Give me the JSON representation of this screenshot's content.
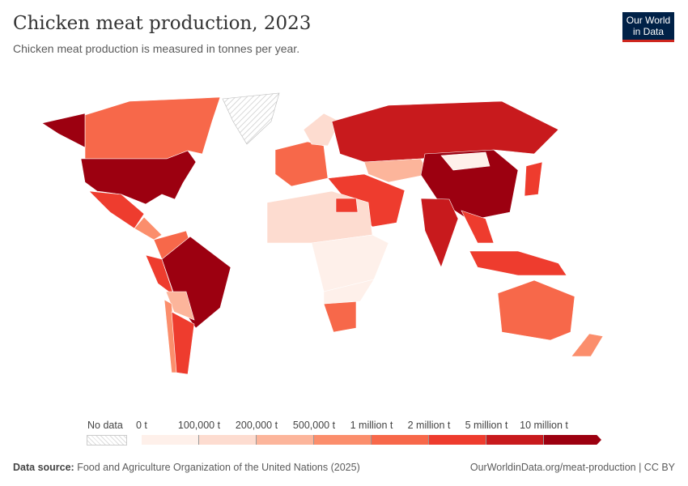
{
  "header": {
    "title": "Chicken meat production, 2023",
    "subtitle": "Chicken meat production is measured in tonnes per year.",
    "logo": "Our World in Data"
  },
  "legend": {
    "no_data": "No data",
    "bins": [
      {
        "label": "0 t",
        "color": "#fef0ea"
      },
      {
        "label": "100,000 t",
        "color": "#fddcd0"
      },
      {
        "label": "200,000 t",
        "color": "#fcb59b"
      },
      {
        "label": "500,000 t",
        "color": "#fb8e6c"
      },
      {
        "label": "1 million t",
        "color": "#f7684a"
      },
      {
        "label": "2 million t",
        "color": "#ee3c2e"
      },
      {
        "label": "5 million t",
        "color": "#c81a1d"
      },
      {
        "label": "10 million t",
        "color": "#9c0010"
      }
    ]
  },
  "footer": {
    "source_label": "Data source:",
    "source": "Food and Agriculture Organization of the United Nations (2025)",
    "link": "OurWorldinData.org/meat-production | CC BY"
  }
}
